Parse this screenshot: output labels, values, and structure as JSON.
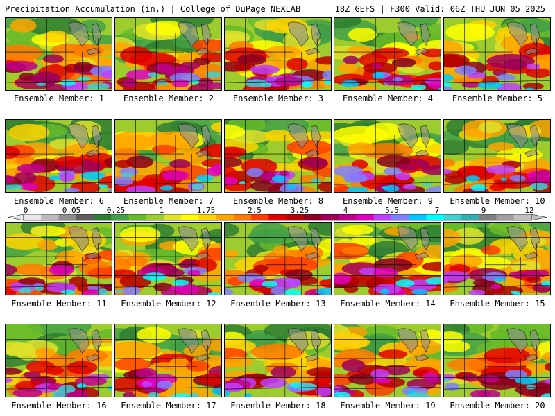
{
  "header": {
    "title_left": "Precipitation Accumulation (in.) | College of DuPage NEXLAB",
    "title_right": "18Z GEFS | F300 Valid: 06Z THU JUN 05 2025"
  },
  "colorbar": {
    "tick_labels": [
      "0",
      "0.05",
      "0.25",
      "1",
      "1.75",
      "2.5",
      "3.25",
      "4",
      "5.5",
      "7",
      "9",
      "12"
    ],
    "colors": [
      "#e8e8e8",
      "#bcbcbc",
      "#8e8e8e",
      "#5f5f5f",
      "#2e7d32",
      "#43a047",
      "#66bb2a",
      "#9ccc2e",
      "#dfe22a",
      "#ffff00",
      "#ffd400",
      "#ffa500",
      "#ff7a00",
      "#ff3d00",
      "#e00000",
      "#b40000",
      "#8b0020",
      "#a0005a",
      "#c0008a",
      "#e000c0",
      "#c040ff",
      "#8080ff",
      "#00c8ff",
      "#00ffff",
      "#40d0d0",
      "#30b0b0",
      "#808080",
      "#a0a0a0",
      "#c0c0c0"
    ]
  },
  "members": [
    {
      "label": "Ensemble Member: 1"
    },
    {
      "label": "Ensemble Member: 2"
    },
    {
      "label": "Ensemble Member: 3"
    },
    {
      "label": "Ensemble Member: 4"
    },
    {
      "label": "Ensemble Member: 5"
    },
    {
      "label": "Ensemble Member: 6"
    },
    {
      "label": "Ensemble Member: 7"
    },
    {
      "label": "Ensemble Member: 8"
    },
    {
      "label": "Ensemble Member: 9"
    },
    {
      "label": "Ensemble Member: 10"
    },
    {
      "label": "Ensemble Member: 11"
    },
    {
      "label": "Ensemble Member: 12"
    },
    {
      "label": "Ensemble Member: 13"
    },
    {
      "label": "Ensemble Member: 14"
    },
    {
      "label": "Ensemble Member: 15"
    },
    {
      "label": "Ensemble Member: 16"
    },
    {
      "label": "Ensemble Member: 17"
    },
    {
      "label": "Ensemble Member: 18"
    },
    {
      "label": "Ensemble Member: 19"
    },
    {
      "label": "Ensemble Member: 20"
    }
  ]
}
